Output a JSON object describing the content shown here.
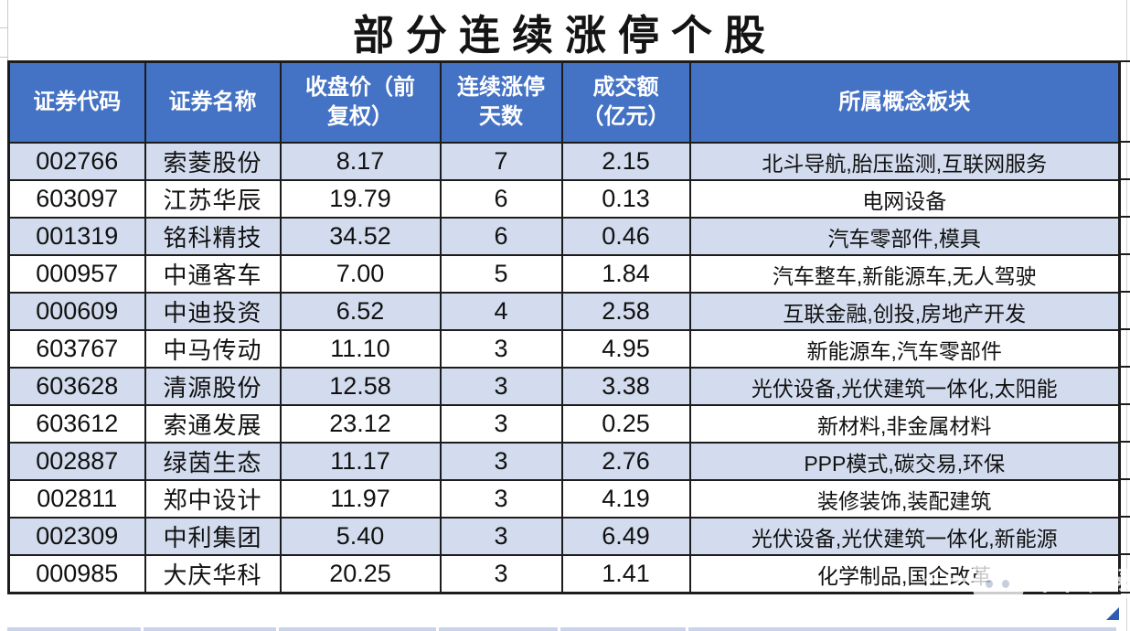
{
  "title": "部分连续涨停个股",
  "table": {
    "columns": [
      {
        "key": "code",
        "label": "证券代码"
      },
      {
        "key": "name",
        "label": "证券名称"
      },
      {
        "key": "price",
        "label": "收盘价（前\n复权）"
      },
      {
        "key": "days",
        "label": "连续涨停\n天数"
      },
      {
        "key": "turnover",
        "label": "成交额\n（亿元）"
      },
      {
        "key": "concepts",
        "label": "所属概念板块"
      }
    ],
    "rows": [
      {
        "code": "002766",
        "name": "索菱股份",
        "price": "8.17",
        "days": "7",
        "turnover": "2.15",
        "concepts": "北斗导航,胎压监测,互联网服务"
      },
      {
        "code": "603097",
        "name": "江苏华辰",
        "price": "19.79",
        "days": "6",
        "turnover": "0.13",
        "concepts": "电网设备"
      },
      {
        "code": "001319",
        "name": "铭科精技",
        "price": "34.52",
        "days": "6",
        "turnover": "0.46",
        "concepts": "汽车零部件,模具"
      },
      {
        "code": "000957",
        "name": "中通客车",
        "price": "7.00",
        "days": "5",
        "turnover": "1.84",
        "concepts": "汽车整车,新能源车,无人驾驶"
      },
      {
        "code": "000609",
        "name": "中迪投资",
        "price": "6.52",
        "days": "4",
        "turnover": "2.58",
        "concepts": "互联金融,创投,房地产开发"
      },
      {
        "code": "603767",
        "name": "中马传动",
        "price": "11.10",
        "days": "3",
        "turnover": "4.95",
        "concepts": "新能源车,汽车零部件"
      },
      {
        "code": "603628",
        "name": "清源股份",
        "price": "12.58",
        "days": "3",
        "turnover": "3.38",
        "concepts": "光伏设备,光伏建筑一体化,太阳能"
      },
      {
        "code": "603612",
        "name": "索通发展",
        "price": "23.12",
        "days": "3",
        "turnover": "0.25",
        "concepts": "新材料,非金属材料"
      },
      {
        "code": "002887",
        "name": "绿茵生态",
        "price": "11.17",
        "days": "3",
        "turnover": "2.76",
        "concepts": "PPP模式,碳交易,环保"
      },
      {
        "code": "002811",
        "name": "郑中设计",
        "price": "11.97",
        "days": "3",
        "turnover": "4.19",
        "concepts": "装修装饰,装配建筑"
      },
      {
        "code": "002309",
        "name": "中利集团",
        "price": "5.40",
        "days": "3",
        "turnover": "6.49",
        "concepts": "光伏设备,光伏建筑一体化,新能源"
      },
      {
        "code": "000985",
        "name": "大庆华科",
        "price": "20.25",
        "days": "3",
        "turnover": "1.41",
        "concepts": "化学制品,国企改革"
      }
    ]
  },
  "watermark": {
    "brand": "中和应泰",
    "icon": "panda-logo"
  },
  "colors": {
    "header_bg": "#4472C4",
    "row_alt_bg": "#D3DCEE",
    "row_bg": "#FFFFFF",
    "border": "#1c1c1c",
    "header_text": "#FFFFFF",
    "corner_triangle": "#2f5cb0"
  }
}
